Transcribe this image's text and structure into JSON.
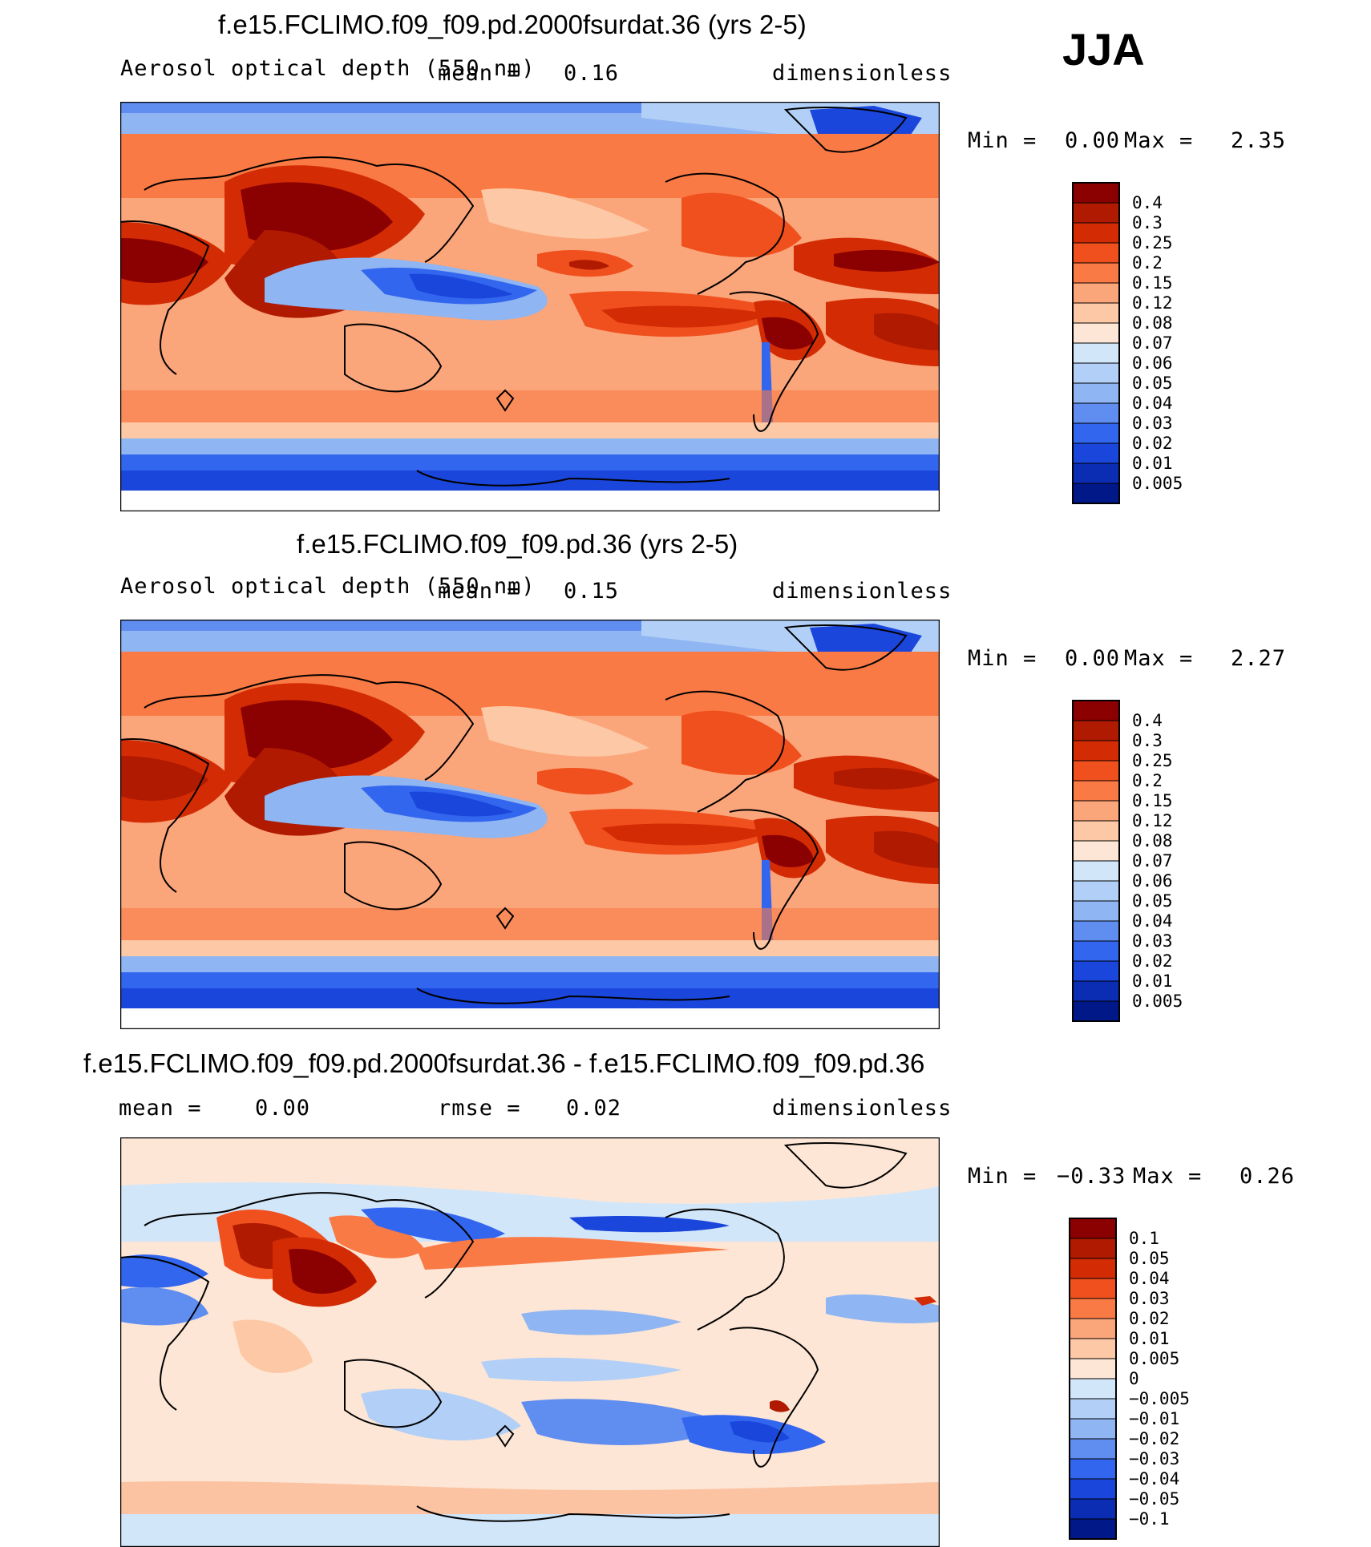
{
  "season": "JJA",
  "panels": [
    {
      "title": "f.e15.FCLIMO.f09_f09.pd.2000fsurdat.36 (yrs 2-5)",
      "variable": "Aerosol optical depth (550 nm)",
      "stat1_label": "mean =",
      "stat1_value": "0.16",
      "stat2_label": "",
      "stat2_value": "",
      "units": "dimensionless",
      "min_label": "Min =",
      "min_value": "0.00",
      "max_label": "Max =",
      "max_value": "2.35"
    },
    {
      "title": "f.e15.FCLIMO.f09_f09.pd.36 (yrs 2-5)",
      "variable": "Aerosol optical depth (550 nm)",
      "stat1_label": "mean =",
      "stat1_value": "0.15",
      "stat2_label": "",
      "stat2_value": "",
      "units": "dimensionless",
      "min_label": "Min =",
      "min_value": "0.00",
      "max_label": "Max =",
      "max_value": "2.27"
    },
    {
      "title": "f.e15.FCLIMO.f09_f09.pd.2000fsurdat.36 - f.e15.FCLIMO.f09_f09.pd.36",
      "variable": "",
      "stat1_label": "mean =",
      "stat1_value": "0.00",
      "stat2_label": "rmse =",
      "stat2_value": "0.02",
      "units": "dimensionless",
      "min_label": "Min =",
      "min_value": "−0.33",
      "max_label": "Max =",
      "max_value": "0.26"
    }
  ],
  "chart_data": [
    {
      "type": "heatmap",
      "title": "f.e15.FCLIMO.f09_f09.pd.2000fsurdat.36 (yrs 2-5)",
      "field": "Aerosol optical depth (550 nm)",
      "units": "dimensionless",
      "mean": 0.16,
      "min": 0.0,
      "max": 2.35,
      "colorbar_levels": [
        "0.4",
        "0.3",
        "0.25",
        "0.2",
        "0.15",
        "0.12",
        "0.08",
        "0.07",
        "0.06",
        "0.05",
        "0.04",
        "0.03",
        "0.02",
        "0.01",
        "0.005"
      ],
      "colorbar_colors": [
        "#8b0000",
        "#b01a00",
        "#d32c05",
        "#f0501e",
        "#fa7a45",
        "#fba57a",
        "#fdc8a5",
        "#fde6d5",
        "#d2e6fa",
        "#b2d0f7",
        "#8fb5f2",
        "#5f8df0",
        "#3366ee",
        "#1a46dc",
        "#0a2db4",
        "#001888"
      ],
      "grid": false
    },
    {
      "type": "heatmap",
      "title": "f.e15.FCLIMO.f09_f09.pd.36 (yrs 2-5)",
      "field": "Aerosol optical depth (550 nm)",
      "units": "dimensionless",
      "mean": 0.15,
      "min": 0.0,
      "max": 2.27,
      "colorbar_levels": [
        "0.4",
        "0.3",
        "0.25",
        "0.2",
        "0.15",
        "0.12",
        "0.08",
        "0.07",
        "0.06",
        "0.05",
        "0.04",
        "0.03",
        "0.02",
        "0.01",
        "0.005"
      ],
      "colorbar_colors": [
        "#8b0000",
        "#b01a00",
        "#d32c05",
        "#f0501e",
        "#fa7a45",
        "#fba57a",
        "#fdc8a5",
        "#fde6d5",
        "#d2e6fa",
        "#b2d0f7",
        "#8fb5f2",
        "#5f8df0",
        "#3366ee",
        "#1a46dc",
        "#0a2db4",
        "#001888"
      ],
      "grid": false
    },
    {
      "type": "heatmap",
      "title": "f.e15.FCLIMO.f09_f09.pd.2000fsurdat.36 - f.e15.FCLIMO.f09_f09.pd.36",
      "units": "dimensionless",
      "mean": 0.0,
      "rmse": 0.02,
      "min": -0.33,
      "max": 0.26,
      "colorbar_levels": [
        "0.1",
        "0.05",
        "0.04",
        "0.03",
        "0.02",
        "0.01",
        "0.005",
        "0",
        "−0.005",
        "−0.01",
        "−0.02",
        "−0.03",
        "−0.04",
        "−0.05",
        "−0.1"
      ],
      "colorbar_colors": [
        "#8b0000",
        "#b01a00",
        "#d32c05",
        "#f0501e",
        "#fa7a45",
        "#fba57a",
        "#fdc8a5",
        "#fde6d5",
        "#d2e6fa",
        "#b2d0f7",
        "#8fb5f2",
        "#5f8df0",
        "#3366ee",
        "#1a46dc",
        "#0a2db4",
        "#001888"
      ],
      "grid": false
    }
  ]
}
